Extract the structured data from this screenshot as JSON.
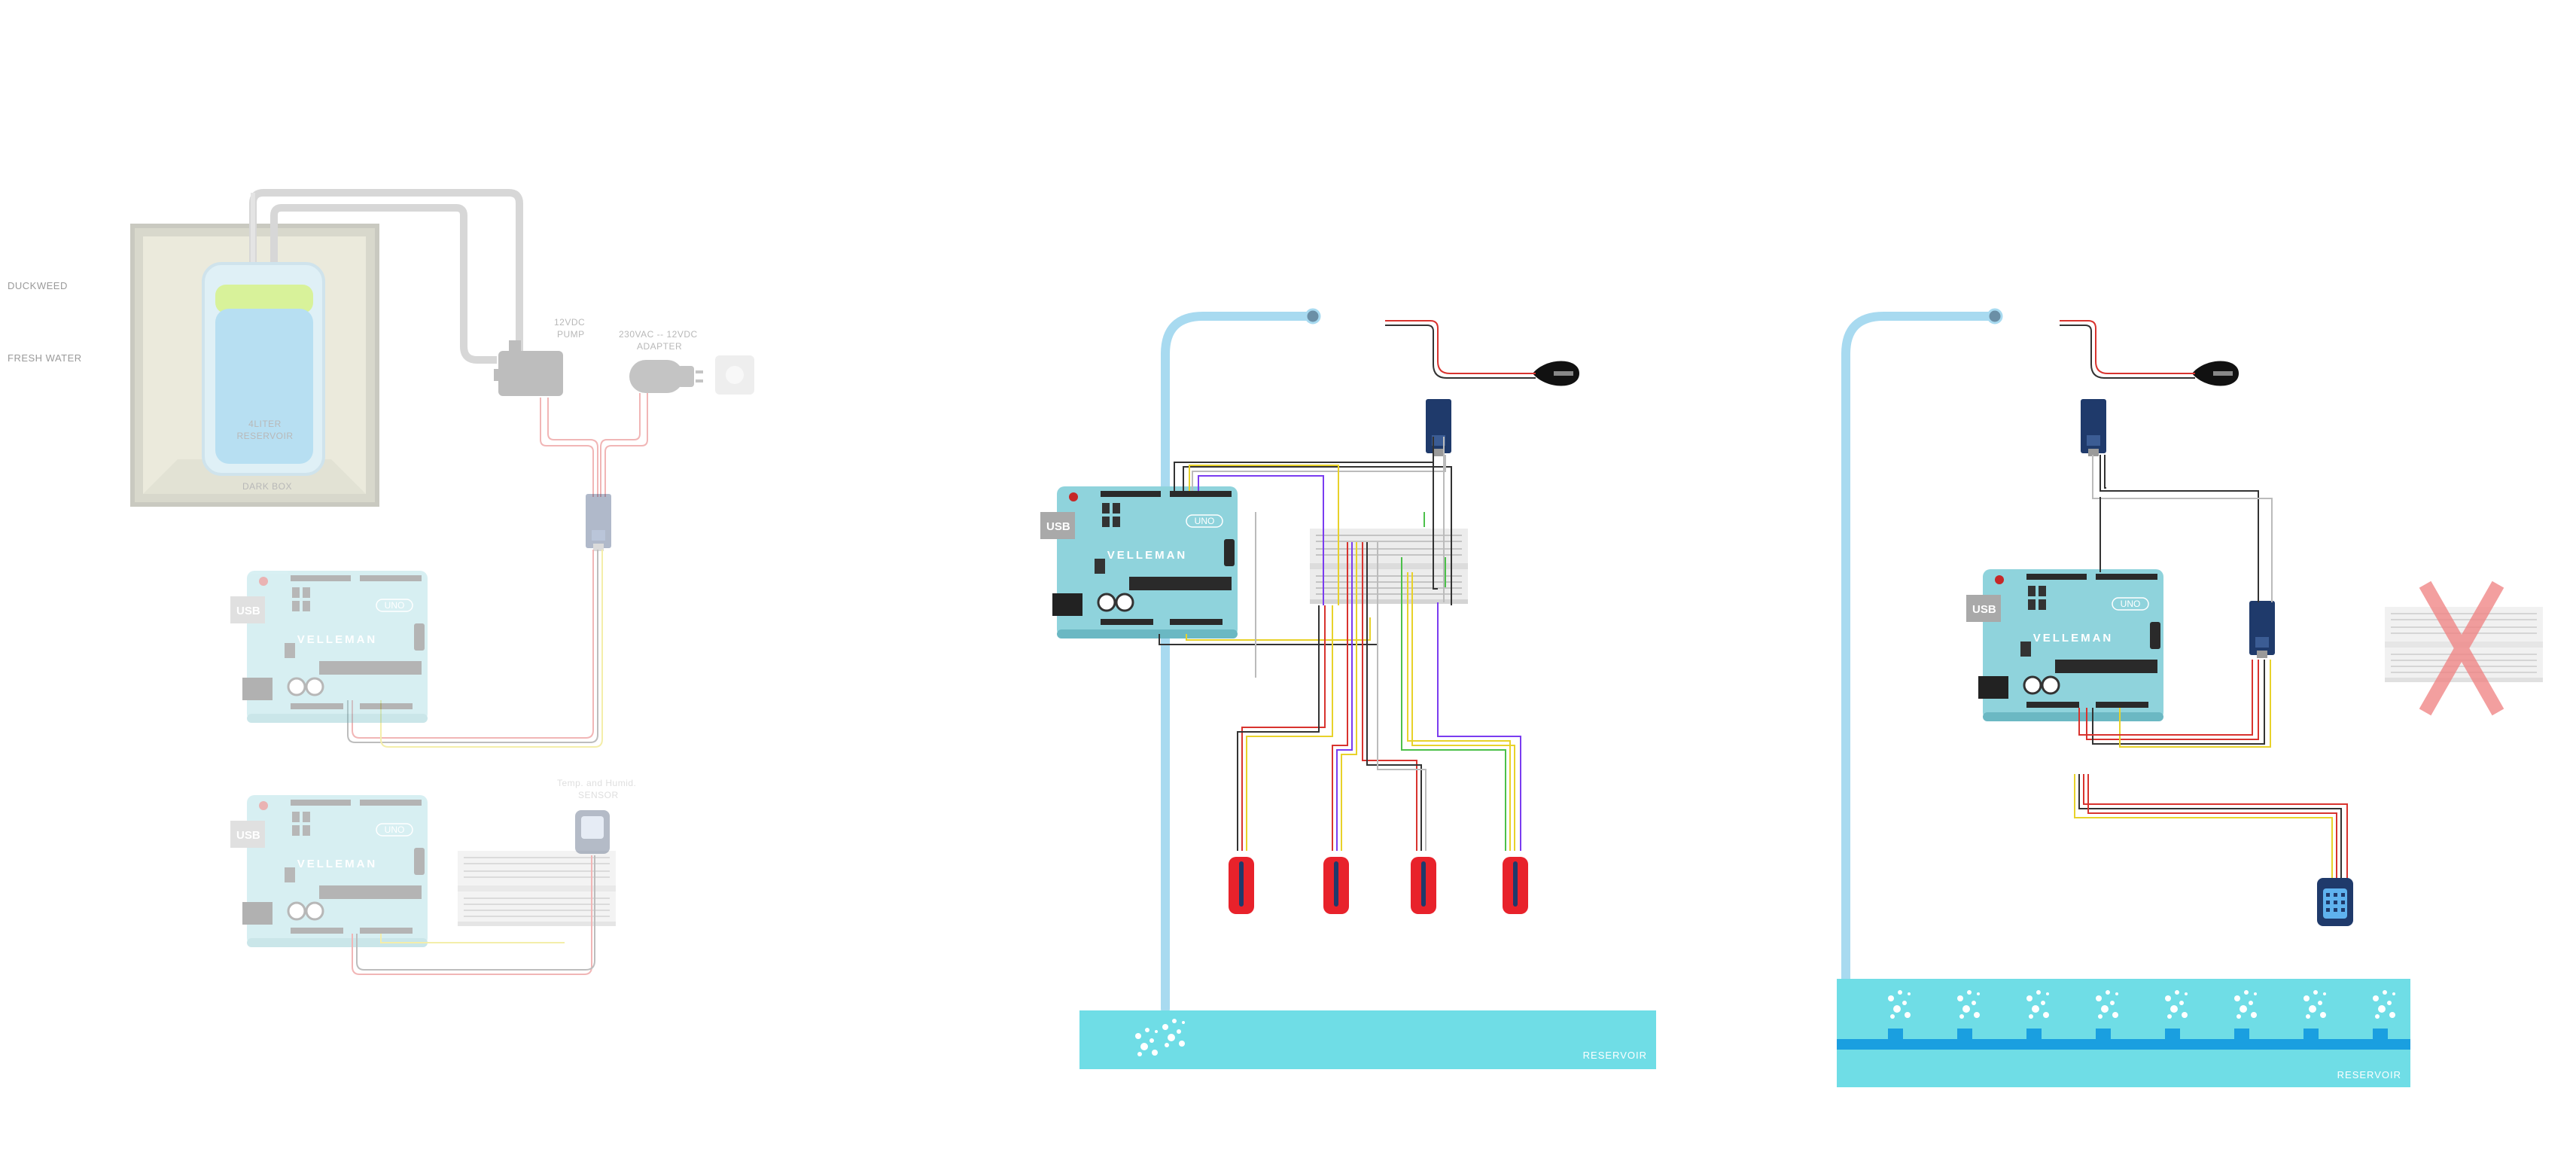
{
  "panel1": {
    "labels": {
      "duckweed": "DUCKWEED",
      "fresh_water": "FRESH WATER",
      "reservoir_l1": "4LITER",
      "reservoir_l2": "RESERVOIR",
      "dark_box": "DARK BOX",
      "pump_l1": "12VDC",
      "pump_l2": "PUMP",
      "adapter_l1": "230VAC -- 12VDC",
      "adapter_l2": "ADAPTER",
      "sensor_l1": "Temp. and Humid.",
      "sensor_l2": "SENSOR"
    }
  },
  "board": {
    "usb": "USB",
    "brand": "VELLEMAN",
    "model": "UNO"
  },
  "panel2": {
    "reservoir": "RESERVOIR"
  },
  "panel3": {
    "reservoir": "RESERVOIR"
  },
  "colors": {
    "board": "#8fd3dc",
    "board_dark": "#6bb8c3",
    "tube": "#a8daf0",
    "reservoir": "#6fdde6",
    "probe": "#e8222b",
    "module": "#1f3a6b",
    "wire_red": "#d8332e",
    "wire_yellow": "#e8d22a",
    "wire_black": "#333333",
    "wire_purple": "#7a3cf0",
    "wire_green": "#4cc04a",
    "cross": "#f08080"
  }
}
